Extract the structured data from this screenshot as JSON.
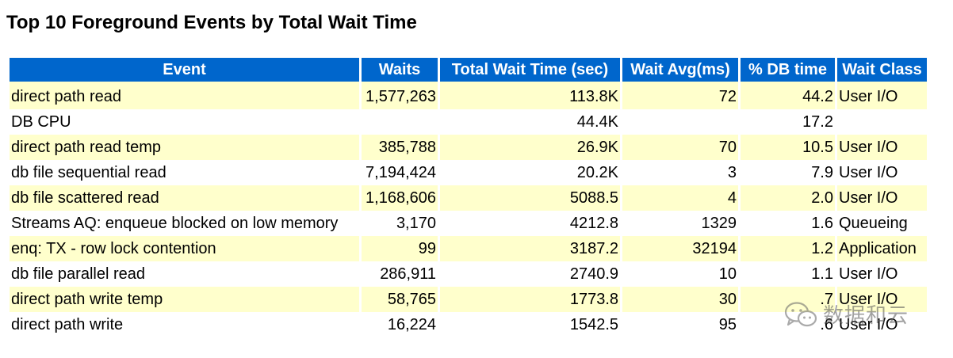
{
  "report": {
    "title": "Top 10 Foreground Events by Total Wait Time"
  },
  "table": {
    "columns": [
      "Event",
      "Waits",
      "Total Wait Time (sec)",
      "Wait Avg(ms)",
      "% DB time",
      "Wait Class"
    ],
    "rows": [
      {
        "event": "direct path read",
        "waits": "1,577,263",
        "total_wait_time": "113.8K",
        "wait_avg": "72",
        "pct_db_time": "44.2",
        "wait_class": "User I/O"
      },
      {
        "event": "DB CPU",
        "waits": "",
        "total_wait_time": "44.4K",
        "wait_avg": "",
        "pct_db_time": "17.2",
        "wait_class": ""
      },
      {
        "event": "direct path read temp",
        "waits": "385,788",
        "total_wait_time": "26.9K",
        "wait_avg": "70",
        "pct_db_time": "10.5",
        "wait_class": "User I/O"
      },
      {
        "event": "db file sequential read",
        "waits": "7,194,424",
        "total_wait_time": "20.2K",
        "wait_avg": "3",
        "pct_db_time": "7.9",
        "wait_class": "User I/O"
      },
      {
        "event": "db file scattered read",
        "waits": "1,168,606",
        "total_wait_time": "5088.5",
        "wait_avg": "4",
        "pct_db_time": "2.0",
        "wait_class": "User I/O"
      },
      {
        "event": "Streams AQ: enqueue blocked on low memory",
        "waits": "3,170",
        "total_wait_time": "4212.8",
        "wait_avg": "1329",
        "pct_db_time": "1.6",
        "wait_class": "Queueing"
      },
      {
        "event": "enq: TX - row lock contention",
        "waits": "99",
        "total_wait_time": "3187.2",
        "wait_avg": "32194",
        "pct_db_time": "1.2",
        "wait_class": "Application"
      },
      {
        "event": "db file parallel read",
        "waits": "286,911",
        "total_wait_time": "2740.9",
        "wait_avg": "10",
        "pct_db_time": "1.1",
        "wait_class": "User I/O"
      },
      {
        "event": "direct path write temp",
        "waits": "58,765",
        "total_wait_time": "1773.8",
        "wait_avg": "30",
        "pct_db_time": ".7",
        "wait_class": "User I/O"
      },
      {
        "event": "direct path write",
        "waits": "16,224",
        "total_wait_time": "1542.5",
        "wait_avg": "95",
        "pct_db_time": ".6",
        "wait_class": "User I/O"
      }
    ]
  },
  "watermark": {
    "text": "数据和云",
    "icon": "wechat-icon"
  },
  "colors": {
    "header_bg": "#0066cc",
    "header_text": "#ffffff",
    "row_highlight": "#ffffcc"
  }
}
